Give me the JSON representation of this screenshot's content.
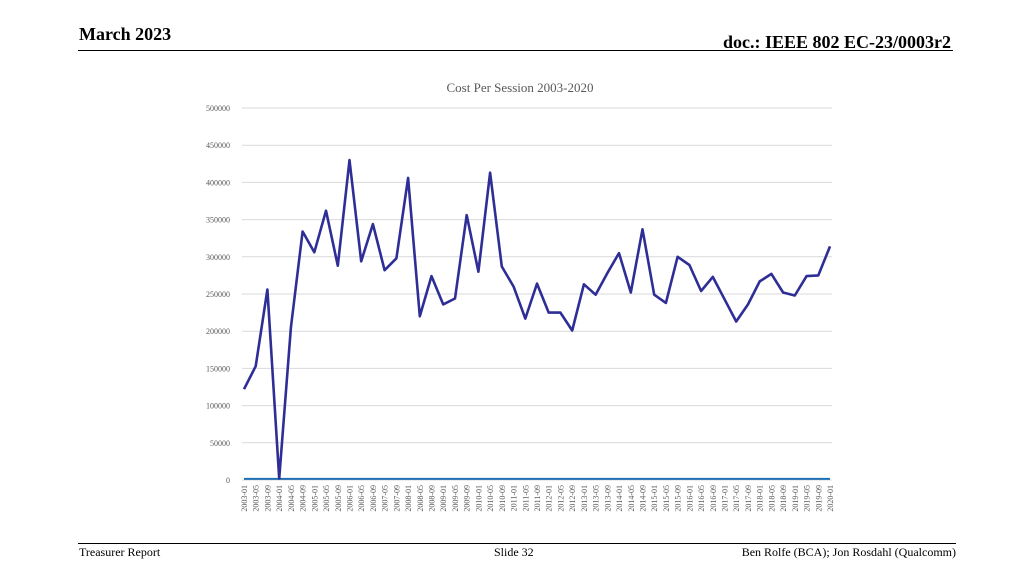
{
  "header": {
    "date": "March 2023",
    "doc": "doc.: IEEE 802 EC-23/0003r2"
  },
  "footer": {
    "left": "Treasurer Report",
    "center": "Slide 32",
    "right": "Ben Rolfe (BCA);   Jon Rosdahl (Qualcomm)"
  },
  "colors": {
    "main_series": "#2e2e96",
    "secondary_series": "#1f6fb4",
    "grid": "#d9d9d9"
  },
  "chart_data": {
    "type": "line",
    "title": "Cost Per Session 2003-2020",
    "xlabel": "",
    "ylabel": "",
    "ylim": [
      0,
      500000
    ],
    "yticks": [
      0,
      50000,
      100000,
      150000,
      200000,
      250000,
      300000,
      350000,
      400000,
      450000,
      500000
    ],
    "grid": true,
    "legend": "none",
    "categories": [
      "2003-01",
      "2003-05",
      "2003-09",
      "2004-01",
      "2004-05",
      "2004-09",
      "2005-01",
      "2005-05",
      "2005-09",
      "2006-01",
      "2006-05",
      "2006-09",
      "2007-05",
      "2007-09",
      "2008-01",
      "2008-05",
      "2008-09",
      "2009-01",
      "2009-05",
      "2009-09",
      "2010-01",
      "2010-05",
      "2010-09",
      "2011-01",
      "2011-05",
      "2011-09",
      "2012-01",
      "2012-05",
      "2012-09",
      "2013-01",
      "2013-05",
      "2013-09",
      "2014-01",
      "2014-05",
      "2014-09",
      "2015-01",
      "2015-05",
      "2015-09",
      "2016-01",
      "2016-05",
      "2016-09",
      "2017-01",
      "2017-05",
      "2017-09",
      "2018-01",
      "2018-05",
      "2018-09",
      "2019-01",
      "2019-05",
      "2019-09",
      "2020-01"
    ],
    "series": [
      {
        "values": [
          122000,
          153000,
          256000,
          2000,
          205000,
          334000,
          306000,
          362000,
          288000,
          430000,
          294000,
          344000,
          282000,
          298000,
          406000,
          220000,
          274000,
          236000,
          244000,
          356000,
          280000,
          413000,
          287000,
          260000,
          217000,
          264000,
          225000,
          225000,
          201000,
          263000,
          249000,
          278000,
          305000,
          252000,
          337000,
          249000,
          238000,
          300000,
          289000,
          254000,
          273000,
          243000,
          213000,
          236000,
          267000,
          277000,
          252000,
          248000,
          274000,
          275000,
          314000
        ]
      },
      {
        "values": [
          1500,
          1500,
          1500,
          1500,
          1500,
          1500,
          1500,
          1500,
          1500,
          1500,
          1500,
          1500,
          1500,
          1500,
          1500,
          1500,
          1500,
          1500,
          1500,
          1500,
          1500,
          1500,
          1500,
          1500,
          1500,
          1500,
          1500,
          1500,
          1500,
          1500,
          1500,
          1500,
          1500,
          1500,
          1500,
          1500,
          1500,
          1500,
          1500,
          1500,
          1500,
          1500,
          1500,
          1500,
          1500,
          1500,
          1500,
          1500,
          1500,
          1500,
          1500
        ]
      }
    ]
  }
}
